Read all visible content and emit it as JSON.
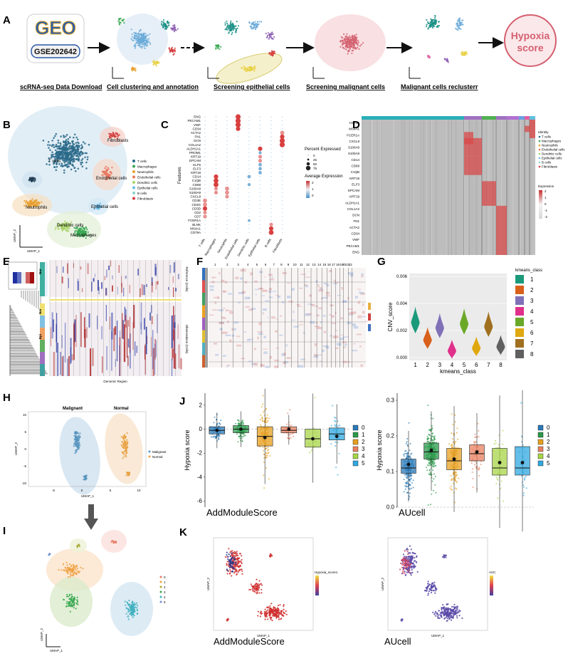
{
  "panels": {
    "A": "A",
    "B": "B",
    "C": "C",
    "D": "D",
    "E": "E",
    "F": "F",
    "G": "G",
    "H": "H",
    "I": "I",
    "J": "J",
    "K": "K"
  },
  "colors": {
    "teal": "#1a8f85",
    "blue": "#6aaad8",
    "orange": "#e8a030",
    "green": "#3aa852",
    "red": "#d43c3c",
    "purple": "#8a5ab0",
    "pink": "#e060a0",
    "yellow": "#e8d040",
    "hypoxia": "#d46070"
  },
  "workflow": {
    "geo_logo": "GEO",
    "gse_id": "GSE202642",
    "hypoxia": [
      "Hypoxia",
      "score"
    ],
    "steps": [
      "scRNA-seq Data Download",
      "Cell clustering and annotation",
      "Screening epithelial cells",
      "Screening malignant cells",
      "Malignant cells reclusterr"
    ]
  },
  "umapB": {
    "clusters": [
      "T cells",
      "Fibroblasts",
      "Endothelial cells",
      "Epithelial cells",
      "Neutrophils",
      "Dendritic cells",
      "Macrophages"
    ],
    "xlab": "UMAP_1",
    "ylab": "UMAP_2",
    "legend": [
      "T cells",
      "Macrophages",
      "Neutrophils",
      "Endothelial cells",
      "Dendritic cells",
      "Epithelial cells",
      "B cells",
      "Fibroblasts"
    ],
    "legend_colors": [
      "#2a6a8a",
      "#3aa852",
      "#e8a030",
      "#e87860",
      "#a8d468",
      "#6ab8e8",
      "#88d4c8",
      "#d43c3c"
    ]
  },
  "dotplotC": {
    "genes": [
      "ENG",
      "PECAM1",
      "VWF",
      "CD34",
      "ACTA2",
      "FN1",
      "DCN",
      "COL1A2",
      "ALDH1A1",
      "PROM1",
      "KRT19",
      "EPCAM",
      "KLF5",
      "ELF3",
      "KRT18",
      "CD14",
      "C1QB",
      "CD68",
      "S100A8",
      "S100A9",
      "CXCL8",
      "CD3E",
      "CD3G",
      "CD3D",
      "CD2",
      "CD7",
      "FCER1A",
      "BLNK",
      "MS4A1",
      "CD79A"
    ],
    "cells": [
      "T cells",
      "Macrophages",
      "Neutrophils",
      "Endothelial cells",
      "Dendritic cells",
      "Epithelial cells",
      "B cells",
      "Fibroblasts"
    ],
    "ylab": "Features",
    "pct_title": "Percent Expressed",
    "pct_values": [
      "0",
      "25",
      "50",
      "75"
    ],
    "avg_title": "Average Expression",
    "avg_ticks": [
      "2",
      "1",
      "0"
    ]
  },
  "heatmapD": {
    "genes": [
      "CD79A",
      "MS4A1",
      "FCER1A",
      "CXCL8",
      "S100A9",
      "S100A8",
      "CD14",
      "CD68",
      "C1QB",
      "KRT18",
      "ELF3",
      "EPCAM",
      "KRT19",
      "ALDH1A1",
      "COL1A2",
      "DCN",
      "FN1",
      "ACTA2",
      "CD34",
      "VWF",
      "PECAM1",
      "ENG"
    ],
    "identity_title": "Identity",
    "identity": [
      "T cells",
      "Macrophages",
      "Neutrophils",
      "Endothelial cells",
      "Dendritic cells",
      "Epithelial cells",
      "B cells",
      "Fibroblasts"
    ],
    "expr_title": "Expression",
    "expr_ticks": [
      "2",
      "1",
      "0",
      "-1",
      "-2"
    ]
  },
  "panelE": {
    "tags": [
      "Nor",
      "Nor",
      "Epi"
    ],
    "xlab": "Genomic Region",
    "side": [
      "Reference (Cells)",
      "Observations (Cells)"
    ]
  },
  "panelF": {
    "chromosomes": [
      "1",
      "2",
      "3",
      "4",
      "5",
      "6",
      "7",
      "8",
      "9",
      "10",
      "11",
      "12",
      "13",
      "14",
      "15",
      "16",
      "17",
      "18",
      "19",
      "2021",
      "22"
    ]
  },
  "chart_data": [
    {
      "type": "violin",
      "panel": "G",
      "title": "",
      "xlabel": "kmeans_class",
      "ylabel": "CNV_score",
      "categories": [
        "1",
        "2",
        "3",
        "4",
        "5",
        "6",
        "7",
        "8"
      ],
      "values": [
        0.0026,
        0.0013,
        0.0022,
        0.0005,
        0.0025,
        0.0007,
        0.0023,
        0.0008
      ],
      "colors": [
        "#1a9a7a",
        "#d8601a",
        "#8070b8",
        "#e0308a",
        "#6aa828",
        "#e0a810",
        "#a07020",
        "#606060"
      ],
      "yticks": [
        "0.000",
        "0.002",
        "0.004",
        "0.006"
      ],
      "ylim": [
        0,
        0.006
      ],
      "legend_title": "kmeans_class"
    },
    {
      "type": "box",
      "panel": "J-left",
      "title": "AddModuleScore",
      "ylabel": "Hypoxia score",
      "categories": [
        "0",
        "1",
        "2",
        "3",
        "4",
        "5"
      ],
      "medians": [
        -0.1,
        0.0,
        -0.6,
        -0.1,
        -0.8,
        -0.4
      ],
      "means": [
        -0.1,
        0.0,
        -0.7,
        0.0,
        -0.8,
        -0.6
      ],
      "q1": [
        -0.4,
        -0.3,
        -1.4,
        -0.3,
        -1.5,
        -0.9
      ],
      "q3": [
        0.2,
        0.3,
        0.2,
        0.2,
        0.0,
        0.1
      ],
      "colors": [
        "#2a7ab8",
        "#2a9a4a",
        "#e8a020",
        "#e88060",
        "#a8d448",
        "#30a8e0"
      ],
      "yticks": [
        "2",
        "0",
        "-2",
        "-4",
        "-6"
      ],
      "ylim": [
        -6.5,
        3
      ]
    },
    {
      "type": "box",
      "panel": "J-right",
      "title": "AUcell",
      "ylabel": "Hypoxia score",
      "categories": [
        "0",
        "1",
        "2",
        "3",
        "4",
        "5"
      ],
      "medians": [
        0.11,
        0.155,
        0.13,
        0.15,
        0.11,
        0.11
      ],
      "means": [
        0.12,
        0.16,
        0.135,
        0.155,
        0.125,
        0.125
      ],
      "q1": [
        0.095,
        0.135,
        0.105,
        0.13,
        0.09,
        0.09
      ],
      "q3": [
        0.135,
        0.18,
        0.165,
        0.175,
        0.165,
        0.17
      ],
      "colors": [
        "#2a7ab8",
        "#2a9a4a",
        "#e8a020",
        "#e88060",
        "#a8d448",
        "#30a8e0"
      ],
      "yticks": [
        "0.3",
        "0.2",
        "0.1",
        "0.0"
      ],
      "ylim": [
        0,
        0.32
      ]
    }
  ],
  "panelH": {
    "titles": [
      "Malignant",
      "Normal"
    ],
    "legend": [
      "Malignant",
      "Normal"
    ],
    "xlab": "UMAP_1",
    "ylab": "UMAP_2",
    "xticks": [
      "-5",
      "0",
      "5",
      "10"
    ],
    "yticks": [
      "10",
      "5",
      "0",
      "-5",
      "-10"
    ]
  },
  "panelI": {
    "legend": [
      "0",
      "1",
      "2",
      "3",
      "4",
      "5"
    ],
    "xlab": "UMAP_1",
    "ylab": "UMAP_2"
  },
  "panelK": {
    "left_title": "AddModuleScore",
    "right_title": "AUcell",
    "left_legend": "Hypoxia_score1",
    "right_legend": "AUC",
    "xlab": "UMAP_1",
    "ylab": "UMAP_2"
  }
}
